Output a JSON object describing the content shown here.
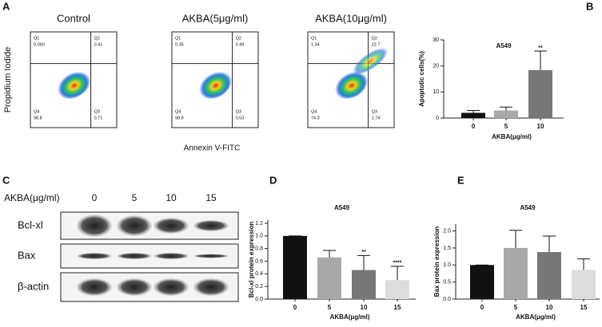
{
  "flow_cytometry": {
    "label": "A",
    "x_label": "Annexin V-FITC",
    "y_label": "Propidium Iodide",
    "plots": [
      {
        "title": "Control",
        "quadrants": [
          {
            "name": "Q1",
            "value": "0.060"
          },
          {
            "name": "Q2",
            "value": "0.41"
          },
          {
            "name": "Q4",
            "value": "98.8"
          },
          {
            "name": "Q3",
            "value": "0.71"
          }
        ]
      },
      {
        "title": "AKBA(5μg/ml)",
        "quadrants": [
          {
            "name": "Q1",
            "value": "0.35"
          },
          {
            "name": "Q2",
            "value": "0.49"
          },
          {
            "name": "Q4",
            "value": "98.8"
          },
          {
            "name": "Q3",
            "value": "0.53"
          }
        ]
      },
      {
        "title": "AKBA(10μg/ml)",
        "quadrants": [
          {
            "name": "Q1",
            "value": "1.34"
          },
          {
            "name": "Q2",
            "value": "22.7"
          },
          {
            "name": "Q4",
            "value": "74.3"
          },
          {
            "name": "Q3",
            "value": "1.74"
          }
        ]
      }
    ]
  },
  "western_blot": {
    "label": "C",
    "treatment_label": "AKBA(μg/ml)",
    "doses": [
      "0",
      "5",
      "10",
      "15"
    ],
    "rows": [
      "Bcl-xl",
      "Bax",
      "β-actin"
    ]
  },
  "chart_data": [
    {
      "type": "bar",
      "label": "B",
      "title": "A549",
      "y_label": "Apoptotic cells(%)",
      "x_label": "AKBA(μg/ml)",
      "categories": [
        "0",
        "5",
        "10"
      ],
      "values": [
        2.0,
        2.9,
        18.4
      ],
      "errors": [
        0.9,
        1.3,
        7.3
      ],
      "significance": [
        null,
        null,
        "**"
      ],
      "colors": [
        "#111111",
        "#a8a8a8",
        "#777777"
      ],
      "ylim": [
        0,
        30
      ],
      "yticks": [
        0,
        10,
        20,
        30
      ]
    },
    {
      "type": "bar",
      "label": "D",
      "title": "A549",
      "y_label": "Bcl-xl protein expression",
      "x_label": "AKBA(μg/ml)",
      "categories": [
        "0",
        "5",
        "10",
        "15"
      ],
      "values": [
        1.0,
        0.66,
        0.46,
        0.3
      ],
      "errors": [
        0,
        0.11,
        0.23,
        0.22
      ],
      "significance": [
        null,
        null,
        "**",
        "****"
      ],
      "colors": [
        "#111111",
        "#a8a8a8",
        "#777777",
        "#dcdcdc"
      ],
      "ylim": [
        0,
        1.25
      ],
      "yticks": [
        {
          "value": 0,
          "label": "0.0"
        },
        {
          "value": 0.2,
          "label": "0.2"
        },
        {
          "value": 0.4,
          "label": "0.4"
        },
        {
          "value": 0.6,
          "label": "0.6"
        },
        {
          "value": 0.8,
          "label": "0.8"
        },
        {
          "value": 1,
          "label": "1.0"
        },
        {
          "value": 1.2,
          "label": "1.2"
        }
      ]
    },
    {
      "type": "bar",
      "label": "E",
      "title": "A549",
      "y_label": "Bax protein expression",
      "x_label": "AKBA(μg/ml)",
      "categories": [
        "0",
        "5",
        "10",
        "15"
      ],
      "values": [
        1.0,
        1.5,
        1.38,
        0.86
      ],
      "errors": [
        0,
        0.52,
        0.47,
        0.32
      ],
      "significance": [
        null,
        null,
        null,
        null
      ],
      "colors": [
        "#111111",
        "#a8a8a8",
        "#777777",
        "#dcdcdc"
      ],
      "ylim": [
        0,
        2.2
      ],
      "yticks": [
        {
          "value": 0,
          "label": "0.0"
        },
        {
          "value": 0.5,
          "label": "0.5"
        },
        {
          "value": 1,
          "label": "1.0"
        },
        {
          "value": 1.5,
          "label": "1.5"
        },
        {
          "value": 2,
          "label": "2.0"
        }
      ]
    }
  ]
}
